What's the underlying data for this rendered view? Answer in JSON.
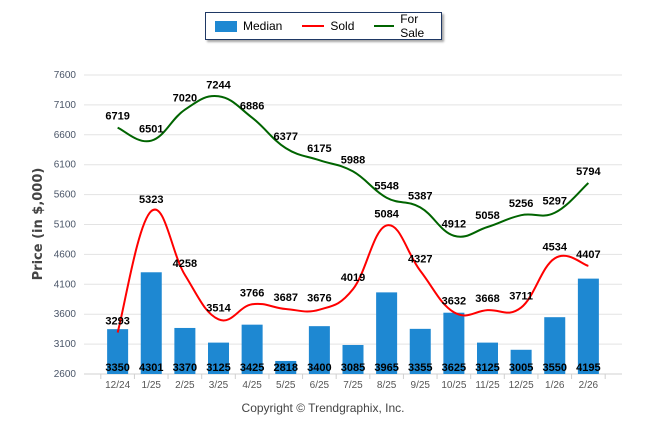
{
  "chart_data": {
    "type": "bar",
    "title": "",
    "xlabel": "",
    "ylabel": "Price (in $,000)",
    "ylim": [
      2600,
      7600
    ],
    "yticks": [
      2600,
      3100,
      3600,
      4100,
      4600,
      5100,
      5600,
      6100,
      6600,
      7100,
      7600
    ],
    "grid": true,
    "legend_position": "top-center",
    "categories": [
      "12/24",
      "1/25",
      "2/25",
      "3/25",
      "4/25",
      "5/25",
      "6/25",
      "7/25",
      "8/25",
      "9/25",
      "10/25",
      "11/25",
      "12/25",
      "1/26",
      "2/26"
    ],
    "series": [
      {
        "name": "Median",
        "type": "bar",
        "color": "#1e88d2",
        "values": [
          3350,
          4301,
          3370,
          3125,
          3425,
          2818,
          3400,
          3085,
          3965,
          3355,
          3625,
          3125,
          3005,
          3550,
          4195
        ]
      },
      {
        "name": "Sold",
        "type": "line",
        "color": "#ff0000",
        "values": [
          3293,
          5323,
          4258,
          3514,
          3766,
          3687,
          3676,
          4019,
          5084,
          4327,
          3632,
          3668,
          3711,
          4534,
          4407
        ]
      },
      {
        "name": "For Sale",
        "type": "line",
        "color": "#006400",
        "values": [
          6719,
          6501,
          7020,
          7244,
          6886,
          6377,
          6175,
          5988,
          5548,
          5387,
          4912,
          5058,
          5256,
          5297,
          5794
        ]
      }
    ]
  },
  "legend": {
    "items": [
      {
        "label": "Median",
        "color": "#1e88d2",
        "kind": "bar"
      },
      {
        "label": "Sold",
        "color": "#ff0000",
        "kind": "line"
      },
      {
        "label": "For Sale",
        "color": "#006400",
        "kind": "line"
      }
    ]
  },
  "footer": {
    "copyright": "Copyright © Trendgraphix, Inc."
  }
}
